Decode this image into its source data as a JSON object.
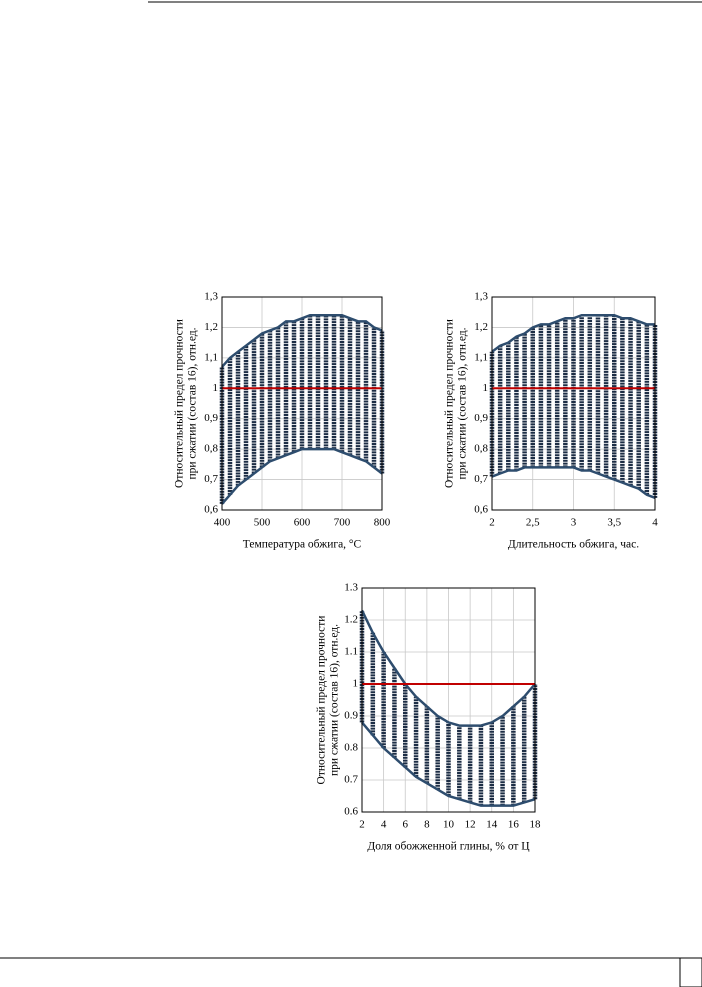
{
  "chart_data": [
    {
      "type": "range",
      "ylabel": [
        "Относительный предел прочности",
        "при сжатии (состав 16), отн.ед."
      ],
      "xlabel": "Температура обжига, °С",
      "x": [
        400,
        420,
        440,
        460,
        480,
        500,
        520,
        540,
        560,
        580,
        600,
        620,
        640,
        660,
        680,
        700,
        720,
        740,
        760,
        780,
        800
      ],
      "high": [
        1.07,
        1.1,
        1.12,
        1.14,
        1.16,
        1.18,
        1.19,
        1.2,
        1.22,
        1.22,
        1.23,
        1.24,
        1.24,
        1.24,
        1.24,
        1.24,
        1.23,
        1.22,
        1.22,
        1.2,
        1.19
      ],
      "low": [
        0.62,
        0.65,
        0.68,
        0.7,
        0.72,
        0.74,
        0.76,
        0.77,
        0.78,
        0.79,
        0.8,
        0.8,
        0.8,
        0.8,
        0.8,
        0.79,
        0.78,
        0.77,
        0.76,
        0.74,
        0.72
      ],
      "color": "#1c2d45",
      "edge_color": "#2e4d6e",
      "hline": 1,
      "hline_color": "#c00000",
      "xlim": [
        400,
        800
      ],
      "xticks": [
        400,
        500,
        600,
        700,
        800
      ],
      "ylim": [
        0.6,
        1.3
      ],
      "yticks": [
        {
          "value": 0.6,
          "label": "0,6"
        },
        {
          "value": 0.7,
          "label": "0,7"
        },
        {
          "value": 0.8,
          "label": "0,8"
        },
        {
          "value": 0.9,
          "label": "0,9"
        },
        1,
        {
          "value": 1.1,
          "label": "1,1"
        },
        {
          "value": 1.2,
          "label": "1,2"
        },
        {
          "value": 1.3,
          "label": "1,3"
        }
      ],
      "grid": true
    },
    {
      "type": "range",
      "ylabel": [
        "Относительный предел прочности",
        "при сжатии (состав 16), отн.ед."
      ],
      "xlabel": "Длительность обжига, час.",
      "x": [
        2,
        2.1,
        2.2,
        2.3,
        2.4,
        2.5,
        2.6,
        2.7,
        2.8,
        2.9,
        3,
        3.1,
        3.2,
        3.3,
        3.4,
        3.5,
        3.6,
        3.7,
        3.8,
        3.9,
        4
      ],
      "high": [
        1.12,
        1.14,
        1.15,
        1.17,
        1.18,
        1.2,
        1.21,
        1.21,
        1.22,
        1.23,
        1.23,
        1.24,
        1.24,
        1.24,
        1.24,
        1.24,
        1.23,
        1.23,
        1.22,
        1.21,
        1.21
      ],
      "low": [
        0.71,
        0.72,
        0.73,
        0.73,
        0.74,
        0.74,
        0.74,
        0.74,
        0.74,
        0.74,
        0.74,
        0.73,
        0.73,
        0.72,
        0.71,
        0.7,
        0.69,
        0.68,
        0.67,
        0.65,
        0.64
      ],
      "color": "#1c2d45",
      "edge_color": "#2e4d6e",
      "hline": 1,
      "hline_color": "#c00000",
      "xlim": [
        2,
        4
      ],
      "xticks": [
        2,
        {
          "value": 2.5,
          "label": "2,5"
        },
        3,
        {
          "value": 3.5,
          "label": "3,5"
        },
        4
      ],
      "ylim": [
        0.6,
        1.3
      ],
      "yticks": [
        {
          "value": 0.6,
          "label": "0,6"
        },
        {
          "value": 0.7,
          "label": "0,7"
        },
        {
          "value": 0.8,
          "label": "0,8"
        },
        {
          "value": 0.9,
          "label": "0,9"
        },
        1,
        {
          "value": 1.1,
          "label": "1,1"
        },
        {
          "value": 1.2,
          "label": "1,2"
        },
        {
          "value": 1.3,
          "label": "1,3"
        }
      ],
      "grid": true
    },
    {
      "type": "range",
      "ylabel": [
        "Относительный предел прочности",
        "при сжатии (состав 16), отн.ед."
      ],
      "xlabel": "Доля обожженной глины, % от Ц",
      "x": [
        2,
        3,
        4,
        5,
        6,
        7,
        8,
        9,
        10,
        11,
        12,
        13,
        14,
        15,
        16,
        17,
        18
      ],
      "high": [
        1.23,
        1.16,
        1.1,
        1.05,
        1,
        0.96,
        0.93,
        0.9,
        0.88,
        0.87,
        0.87,
        0.87,
        0.88,
        0.9,
        0.93,
        0.96,
        1
      ],
      "low": [
        0.88,
        0.84,
        0.8,
        0.77,
        0.74,
        0.71,
        0.69,
        0.67,
        0.65,
        0.64,
        0.63,
        0.62,
        0.62,
        0.62,
        0.62,
        0.63,
        0.64
      ],
      "color": "#1c2d45",
      "edge_color": "#2e4d6e",
      "hline": 1,
      "hline_color": "#c00000",
      "xlim": [
        2,
        18
      ],
      "xticks": [
        2,
        4,
        6,
        8,
        10,
        12,
        14,
        16,
        18
      ],
      "ylim": [
        0.6,
        1.3
      ],
      "yticks": [
        0.6,
        0.7,
        0.8,
        0.9,
        1,
        1.1,
        1.2,
        1.3
      ],
      "grid": true
    }
  ]
}
